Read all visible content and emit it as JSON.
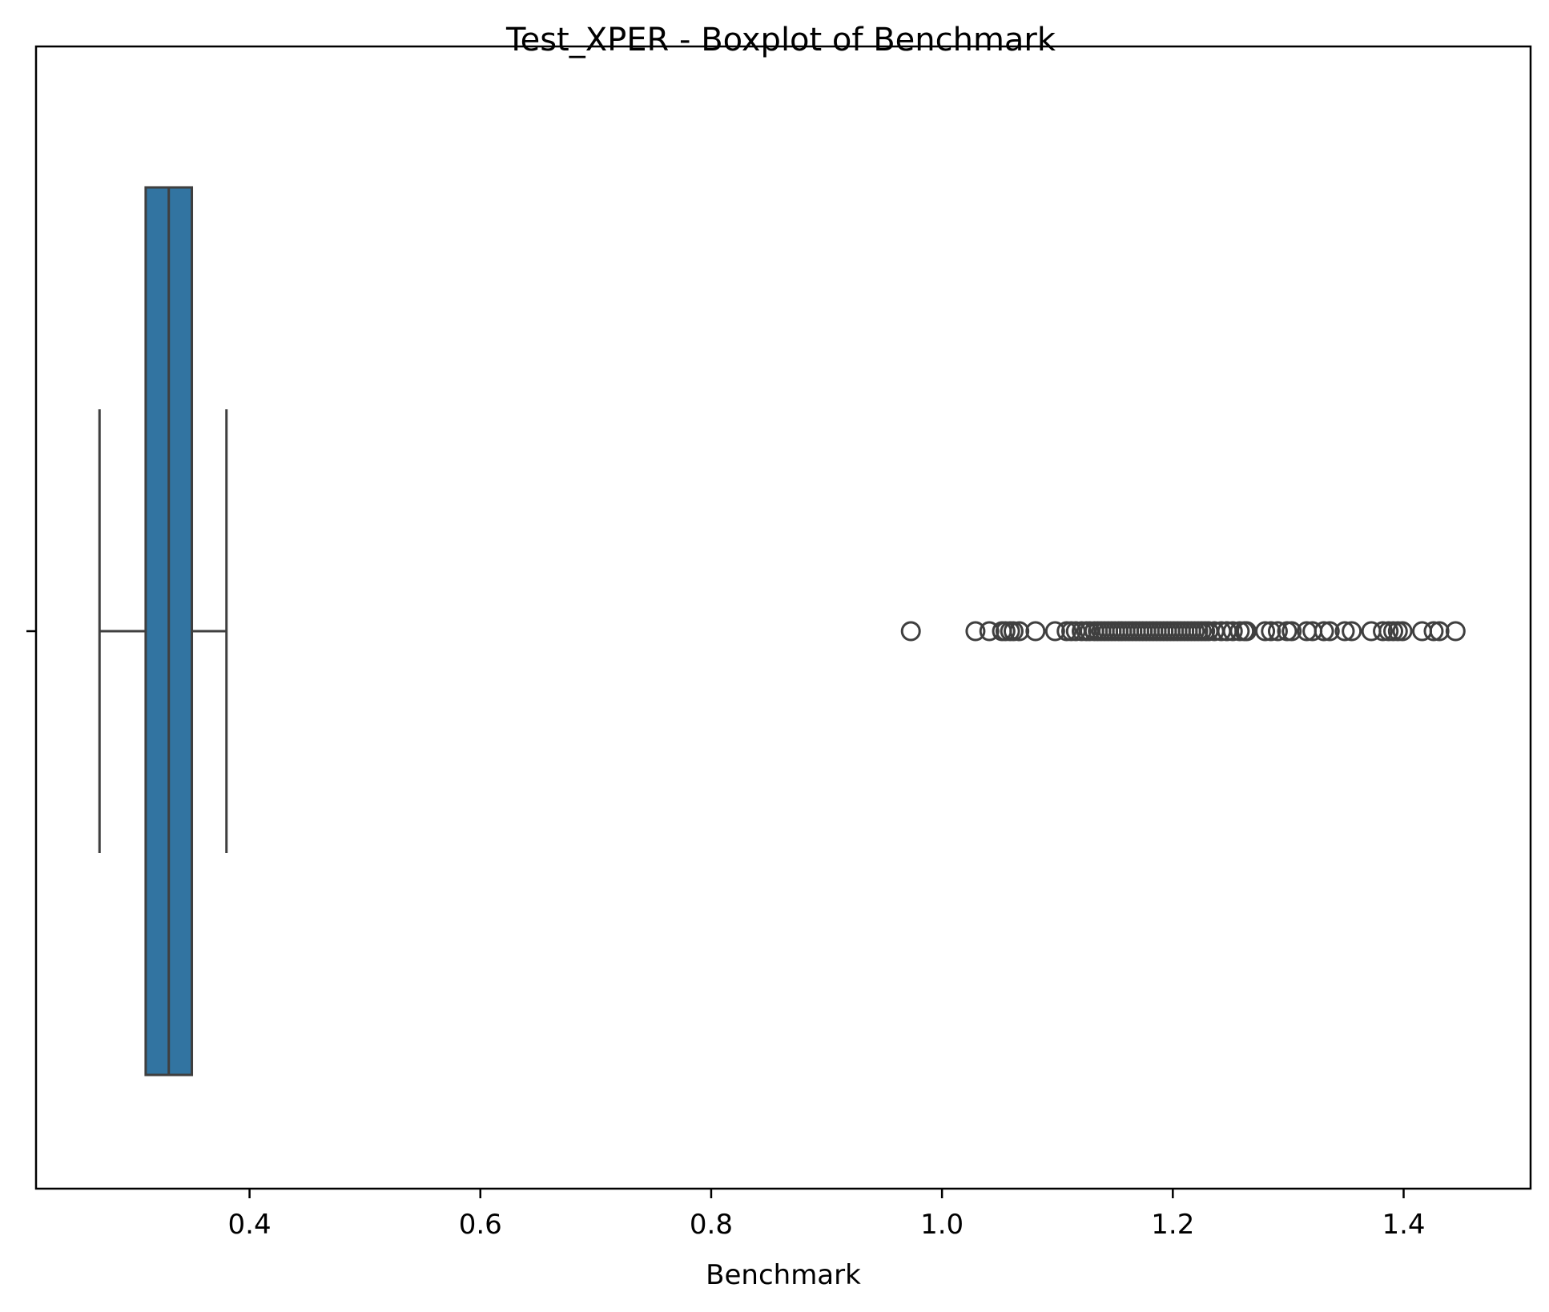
{
  "chart_data": {
    "type": "boxplot",
    "title": "Test_XPER - Boxplot of Benchmark",
    "xlabel": "Benchmark",
    "ylabel": "",
    "orientation": "horizontal",
    "xlim": [
      0.215,
      1.51
    ],
    "xticks": [
      0.4,
      0.6,
      0.8,
      1.0,
      1.2,
      1.4
    ],
    "xtick_labels": [
      "0.4",
      "0.6",
      "0.8",
      "1.0",
      "1.2",
      "1.4"
    ],
    "grid": false,
    "box": {
      "whisker_low": 0.27,
      "q1": 0.31,
      "median": 0.33,
      "q3": 0.35,
      "whisker_high": 0.38,
      "fill_color": "#3274a1",
      "edge_color": "#3f3f3f"
    },
    "outliers": [
      0.973,
      1.029,
      1.041,
      1.052,
      1.055,
      1.059,
      1.062,
      1.067,
      1.081,
      1.098,
      1.108,
      1.112,
      1.116,
      1.121,
      1.125,
      1.128,
      1.132,
      1.135,
      1.138,
      1.141,
      1.144,
      1.147,
      1.15,
      1.153,
      1.156,
      1.159,
      1.162,
      1.165,
      1.168,
      1.171,
      1.174,
      1.177,
      1.18,
      1.183,
      1.186,
      1.189,
      1.192,
      1.195,
      1.198,
      1.201,
      1.204,
      1.207,
      1.21,
      1.213,
      1.216,
      1.219,
      1.222,
      1.225,
      1.228,
      1.231,
      1.236,
      1.242,
      1.247,
      1.252,
      1.258,
      1.262,
      1.264,
      1.28,
      1.285,
      1.291,
      1.299,
      1.303,
      1.316,
      1.321,
      1.331,
      1.336,
      1.349,
      1.355,
      1.372,
      1.382,
      1.387,
      1.391,
      1.395,
      1.399,
      1.416,
      1.426,
      1.431,
      1.445
    ]
  }
}
